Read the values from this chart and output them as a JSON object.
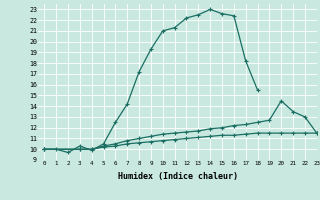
{
  "xlabel": "Humidex (Indice chaleur)",
  "xlim": [
    -0.5,
    23
  ],
  "ylim": [
    9,
    23.5
  ],
  "xticks": [
    0,
    1,
    2,
    3,
    4,
    5,
    6,
    7,
    8,
    9,
    10,
    11,
    12,
    13,
    14,
    15,
    16,
    17,
    18,
    19,
    20,
    21,
    22,
    23
  ],
  "yticks": [
    9,
    10,
    11,
    12,
    13,
    14,
    15,
    16,
    17,
    18,
    19,
    20,
    21,
    22,
    23
  ],
  "bg_color": "#c8e8e0",
  "grid_color": "#b0d8d0",
  "line_color": "#1a6e62",
  "line1_x": [
    0,
    1,
    2,
    3,
    4,
    5,
    6,
    7,
    8,
    9,
    10,
    11,
    12,
    13,
    14,
    15,
    16,
    17,
    18
  ],
  "line1_y": [
    10,
    10,
    9.7,
    10.3,
    9.9,
    10.5,
    12.5,
    14.2,
    17.2,
    19.3,
    21.0,
    21.3,
    22.2,
    22.5,
    23.0,
    22.6,
    22.4,
    18.2,
    15.5
  ],
  "line2_x": [
    0,
    3,
    4,
    5,
    6,
    7,
    8,
    9,
    10,
    11,
    12,
    13,
    14,
    15,
    16,
    17,
    18,
    19,
    20,
    21,
    22,
    23
  ],
  "line2_y": [
    10,
    10,
    10,
    10.3,
    10.5,
    10.8,
    11.0,
    11.2,
    11.4,
    11.5,
    11.6,
    11.7,
    11.9,
    12.0,
    12.2,
    12.3,
    12.5,
    12.7,
    14.5,
    13.5,
    13.0,
    11.5
  ],
  "line3_x": [
    0,
    3,
    4,
    5,
    6,
    7,
    8,
    9,
    10,
    11,
    12,
    13,
    14,
    15,
    16,
    17,
    18,
    19,
    20,
    21,
    22,
    23
  ],
  "line3_y": [
    10,
    10,
    10,
    10.2,
    10.3,
    10.5,
    10.6,
    10.7,
    10.8,
    10.9,
    11.0,
    11.1,
    11.2,
    11.3,
    11.3,
    11.4,
    11.5,
    11.5,
    11.5,
    11.5,
    11.5,
    11.5
  ]
}
